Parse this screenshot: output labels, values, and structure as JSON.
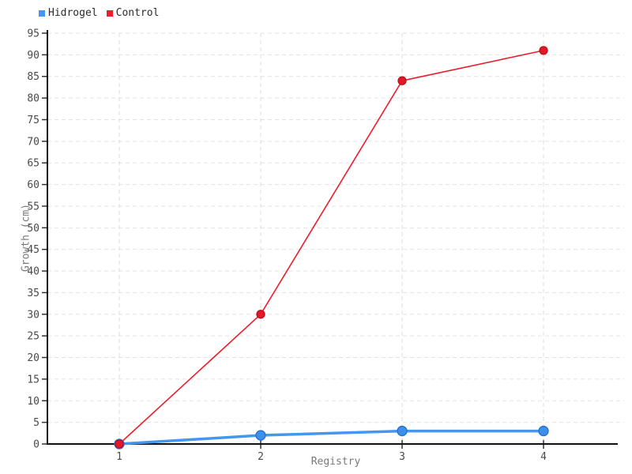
{
  "chart_data": {
    "type": "line",
    "title": "",
    "xlabel": "Registry",
    "ylabel": "Growth (cm)",
    "x": [
      1,
      2,
      3,
      4
    ],
    "series": [
      {
        "name": "Hidrogel",
        "color": "#4596ee",
        "point_fill": "#3e8fe9",
        "point_stroke": "#2470cc",
        "line_width": 3.5,
        "point_radius": 6,
        "values": [
          0,
          2,
          3,
          3
        ]
      },
      {
        "name": "Control",
        "color": "#ea1e2c",
        "point_fill": "#e41627",
        "point_stroke": "#bf1020",
        "line_width": 1.6,
        "point_radius": 5,
        "values": [
          0,
          30,
          84,
          91
        ]
      }
    ],
    "ylim": [
      0,
      95
    ],
    "ytick_step": 5,
    "grid": true,
    "gridline_color": "#e2e2e2",
    "axis_color": "#111111",
    "tick_label_color": "#4a4a4a",
    "legend_position": "top-left"
  }
}
